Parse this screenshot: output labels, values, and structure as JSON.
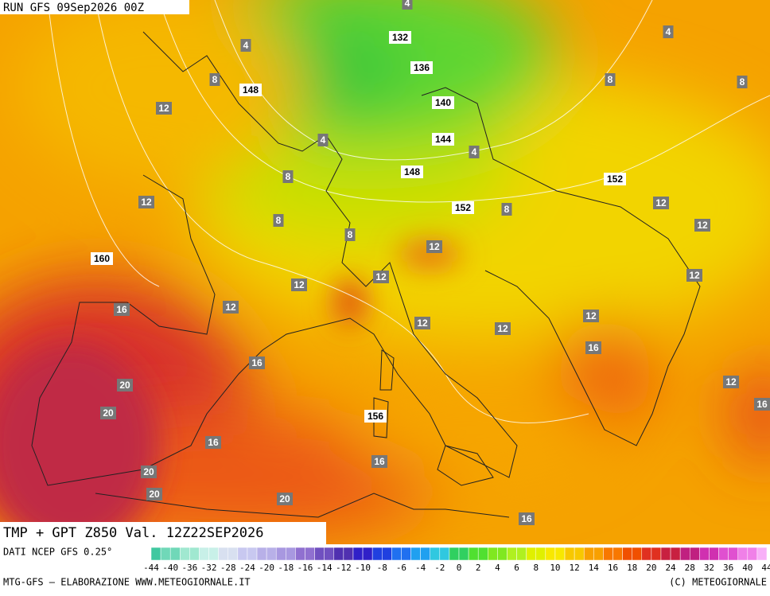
{
  "header": {
    "run": "RUN GFS 09Sep2026 00Z"
  },
  "map": {
    "geopotential_labels": [
      132,
      136,
      140,
      144,
      148,
      148,
      152,
      152,
      156,
      160
    ],
    "temperature_labels": [
      4,
      4,
      4,
      4,
      4,
      8,
      8,
      8,
      8,
      8,
      8,
      8,
      12,
      12,
      12,
      12,
      12,
      12,
      12,
      12,
      12,
      12,
      12,
      12,
      12,
      16,
      16,
      16,
      16,
      16,
      16,
      16,
      20,
      20,
      20,
      20,
      20
    ]
  },
  "footer": {
    "title": "TMP + GPT Z850 Val. 12Z22SEP2026",
    "source": "DATI NCEP GFS 0.25°",
    "credit": "MTG-GFS – ELABORAZIONE WWW.METEOGIORNALE.IT",
    "copyright": "(C) METEOGIORNALE",
    "scale_labels": [
      -44,
      -40,
      -36,
      -32,
      -28,
      -24,
      -20,
      -18,
      -16,
      -14,
      -12,
      -10,
      -8,
      -6,
      -4,
      -2,
      0,
      2,
      4,
      6,
      8,
      10,
      12,
      14,
      16,
      18,
      20,
      24,
      28,
      32,
      36,
      40,
      44
    ]
  }
}
